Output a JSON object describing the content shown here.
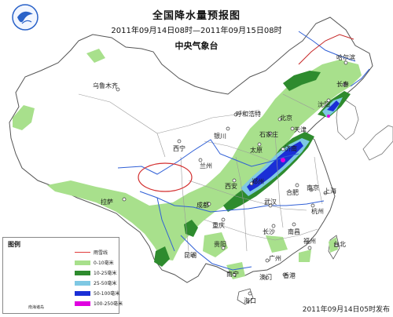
{
  "header": {
    "title": "全国降水量预报图",
    "period": "2011年09月14日08时—2011年09月15日08时",
    "agency": "中央气象台"
  },
  "issued": "2011年09月14日05时发布",
  "legend": {
    "title": "图例",
    "items": [
      {
        "label": "雨雪线",
        "color": "#e03a3a",
        "kind": "line"
      },
      {
        "label": "0-10毫米",
        "color": "#a8e08c",
        "kind": "fill"
      },
      {
        "label": "10-25毫米",
        "color": "#2e8b2e",
        "kind": "fill"
      },
      {
        "label": "25-50毫米",
        "color": "#7ec8e3",
        "kind": "fill"
      },
      {
        "label": "50-100毫米",
        "color": "#1a2fd6",
        "kind": "fill"
      },
      {
        "label": "100-250毫米",
        "color": "#e000e0",
        "kind": "fill"
      }
    ],
    "inset_caption": "南海诸岛"
  },
  "cities": [
    {
      "id": "wulumuqi",
      "name": "乌鲁木齐"
    },
    {
      "id": "lasa",
      "name": "拉萨"
    },
    {
      "id": "xining",
      "name": "西宁"
    },
    {
      "id": "lanzhou",
      "name": "兰州"
    },
    {
      "id": "yinchuan",
      "name": "银川"
    },
    {
      "id": "huhehaote",
      "name": "呼和浩特"
    },
    {
      "id": "beijing",
      "name": "北京"
    },
    {
      "id": "tianjin",
      "name": "天津"
    },
    {
      "id": "shijiazhuang",
      "name": "石家庄"
    },
    {
      "id": "taiyuan",
      "name": "太原"
    },
    {
      "id": "jinan",
      "name": "济南"
    },
    {
      "id": "xian",
      "name": "西安"
    },
    {
      "id": "zhengzhou",
      "name": "郑州"
    },
    {
      "id": "hefei",
      "name": "合肥"
    },
    {
      "id": "nanjing",
      "name": "南京"
    },
    {
      "id": "shanghai",
      "name": "上海"
    },
    {
      "id": "hangzhou",
      "name": "杭州"
    },
    {
      "id": "wuhan",
      "name": "武汉"
    },
    {
      "id": "chengdu",
      "name": "成都"
    },
    {
      "id": "chongqing",
      "name": "重庆"
    },
    {
      "id": "changsha",
      "name": "长沙"
    },
    {
      "id": "nanchang",
      "name": "南昌"
    },
    {
      "id": "guiyang",
      "name": "贵阳"
    },
    {
      "id": "kunming",
      "name": "昆明"
    },
    {
      "id": "nanning",
      "name": "南宁"
    },
    {
      "id": "guangzhou",
      "name": "广州"
    },
    {
      "id": "fuzhou",
      "name": "福州"
    },
    {
      "id": "taibei",
      "name": "台北"
    },
    {
      "id": "haikou",
      "name": "海口"
    },
    {
      "id": "xianggang",
      "name": "香港"
    },
    {
      "id": "aomen",
      "name": "澳门"
    },
    {
      "id": "shenyang",
      "name": "沈阳"
    },
    {
      "id": "changchun",
      "name": "长春"
    },
    {
      "id": "haerbin",
      "name": "哈尔滨"
    }
  ]
}
